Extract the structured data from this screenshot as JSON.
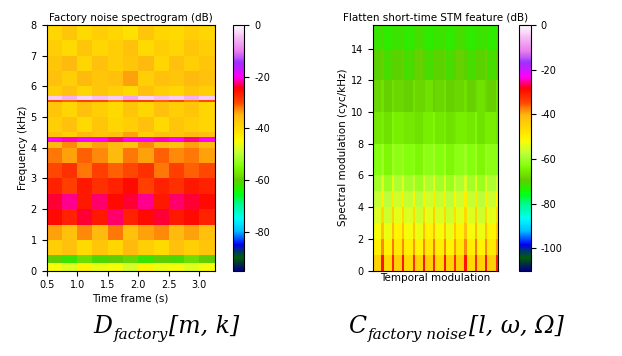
{
  "chart_data": [
    {
      "type": "heatmap",
      "title": "Factory noise spectrogram (dB)",
      "x_label": "Time frame (s)",
      "y_label": "Frequency (kHz)",
      "color": "gist_ncar",
      "tick_labels": true,
      "xlim": [
        0.5,
        3.25
      ],
      "xticks": [
        0.5,
        1.0,
        1.5,
        2.0,
        2.5,
        3.0
      ],
      "ylim": [
        0,
        8
      ],
      "yticks": [
        0,
        1,
        2,
        3,
        4,
        5,
        6,
        7,
        8
      ],
      "x_edges": [
        0.5,
        0.75,
        1.0,
        1.25,
        1.5,
        1.75,
        2.0,
        2.25,
        2.5,
        2.75,
        3.0,
        3.25
      ],
      "y_edges": [
        0,
        0.25,
        0.5,
        1,
        1.5,
        2,
        2.5,
        3,
        3.5,
        4,
        4.2,
        4.35,
        4.5,
        5,
        5.5,
        5.55,
        5.7,
        6,
        6.5,
        7,
        7.5,
        8
      ],
      "cells": [
        [
          -45,
          -47,
          -44,
          -46,
          -45,
          -48,
          -44,
          -46,
          -45,
          -47,
          -45
        ],
        [
          -60,
          -62,
          -58,
          -61,
          -60,
          -59,
          -62,
          -60,
          -61,
          -58,
          -60
        ],
        [
          -38,
          -36,
          -40,
          -37,
          -39,
          -35,
          -38,
          -40,
          -36,
          -38,
          -37
        ],
        [
          -34,
          -36,
          -33,
          -35,
          -32,
          -36,
          -34,
          -33,
          -35,
          -34,
          -36
        ],
        [
          -25,
          -27,
          -24,
          -26,
          -23,
          -27,
          -25,
          -24,
          -26,
          -25,
          -27
        ],
        [
          -24,
          -22,
          -26,
          -23,
          -25,
          -24,
          -22,
          -26,
          -23,
          -24,
          -25
        ],
        [
          -27,
          -29,
          -26,
          -28,
          -27,
          -25,
          -29,
          -27,
          -28,
          -26,
          -27
        ],
        [
          -30,
          -28,
          -32,
          -29,
          -31,
          -30,
          -28,
          -32,
          -29,
          -31,
          -30
        ],
        [
          -32,
          -34,
          -31,
          -33,
          -35,
          -32,
          -34,
          -31,
          -33,
          -32,
          -34
        ],
        [
          -35,
          -33,
          -36,
          -34,
          -35,
          -37,
          -33,
          -35,
          -36,
          -34,
          -35
        ],
        [
          -20,
          -21,
          -19,
          -20,
          -22,
          -20,
          -19,
          -21,
          -20,
          -22,
          -20
        ],
        [
          -36,
          -38,
          -35,
          -37,
          -36,
          -34,
          -38,
          -36,
          -37,
          -35,
          -36
        ],
        [
          -38,
          -36,
          -40,
          -37,
          -39,
          -38,
          -36,
          -40,
          -37,
          -38,
          -39
        ],
        [
          -37,
          -39,
          -36,
          -38,
          -40,
          -37,
          -39,
          -36,
          -38,
          -37,
          -39
        ],
        [
          -30,
          -31,
          -29,
          -30,
          -32,
          -30,
          -29,
          -31,
          -30,
          -32,
          -30
        ],
        [
          -4,
          -6,
          -3,
          -5,
          -4,
          -7,
          -3,
          -5,
          -4,
          -6,
          -4
        ],
        [
          -38,
          -36,
          -39,
          -37,
          -38,
          -40,
          -36,
          -38,
          -39,
          -37,
          -38
        ],
        [
          -36,
          -38,
          -35,
          -37,
          -36,
          -34,
          -38,
          -36,
          -37,
          -35,
          -36
        ],
        [
          -37,
          -35,
          -39,
          -36,
          -38,
          -37,
          -35,
          -39,
          -36,
          -38,
          -37
        ],
        [
          -38,
          -40,
          -37,
          -39,
          -38,
          -36,
          -40,
          -38,
          -39,
          -37,
          -38
        ],
        [
          -39,
          -37,
          -40,
          -38,
          -39,
          -41,
          -37,
          -39,
          -40,
          -38,
          -39
        ]
      ],
      "colorbar": {
        "range": [
          -95,
          0
        ],
        "ticks": [
          0,
          -20,
          -40,
          -60,
          -80
        ]
      },
      "caption": {
        "base": "D",
        "subscript": "factory",
        "args": "[m, k]"
      }
    },
    {
      "type": "heatmap",
      "title": "Flatten short-time STM feature (dB)",
      "x_label": "Temporal modulation",
      "y_label": "Spectral modulation (cyc/kHz)",
      "color": "gist_ncar",
      "tick_labels": "y",
      "xlim": [
        0,
        24
      ],
      "xticks": [],
      "ylim": [
        0,
        15.5
      ],
      "yticks": [
        0,
        2,
        4,
        6,
        8,
        10,
        12,
        14
      ],
      "x_edges": [
        0,
        1.6,
        2,
        3.6,
        4,
        5.6,
        6,
        7.6,
        8,
        9.6,
        10,
        11.6,
        12,
        13.6,
        14,
        15.6,
        16,
        17.6,
        18,
        19.6,
        20,
        21.6,
        22,
        23.6,
        24
      ],
      "y_edges": [
        0,
        1,
        2,
        3,
        4,
        5,
        6,
        8,
        10,
        12,
        14,
        15.5
      ],
      "cells": [
        [
          -45,
          -30,
          -46,
          -31,
          -44,
          -30,
          -46,
          -32,
          -45,
          -30,
          -44,
          -31,
          -46,
          -30,
          -45,
          -32,
          -44,
          -30,
          -46,
          -31,
          -45,
          -30,
          -44,
          -31
        ],
        [
          -50,
          -38,
          -51,
          -37,
          -49,
          -38,
          -50,
          -39,
          -51,
          -38,
          -49,
          -37,
          -50,
          -38,
          -51,
          -39,
          -49,
          -38,
          -50,
          -37,
          -51,
          -38,
          -49,
          -39
        ],
        [
          -52,
          -42,
          -53,
          -41,
          -51,
          -42,
          -52,
          -43,
          -53,
          -42,
          -51,
          -41,
          -52,
          -42,
          -53,
          -43,
          -51,
          -42,
          -52,
          -41,
          -53,
          -42,
          -51,
          -43
        ],
        [
          -55,
          -46,
          -56,
          -45,
          -54,
          -46,
          -55,
          -47,
          -56,
          -46,
          -54,
          -45,
          -55,
          -46,
          -56,
          -47,
          -54,
          -46,
          -55,
          -45,
          -56,
          -46,
          -54,
          -47
        ],
        [
          -57,
          -50,
          -58,
          -49,
          -56,
          -50,
          -57,
          -51,
          -58,
          -50,
          -56,
          -49,
          -57,
          -50,
          -58,
          -51,
          -56,
          -50,
          -57,
          -49,
          -58,
          -50,
          -56,
          -51
        ],
        [
          -60,
          -55,
          -61,
          -54,
          -59,
          -55,
          -60,
          -56,
          -61,
          -55,
          -59,
          -54,
          -60,
          -55,
          -61,
          -56,
          -59,
          -55,
          -60,
          -54,
          -61,
          -55,
          -59,
          -56
        ],
        [
          -63,
          -61,
          -64,
          -60,
          -62,
          -61,
          -63,
          -62,
          -64,
          -61,
          -62,
          -60,
          -63,
          -61,
          -64,
          -62,
          -62,
          -61,
          -63,
          -60,
          -64,
          -61,
          -62,
          -62
        ],
        [
          -66,
          -65,
          -67,
          -64,
          -65,
          -65,
          -66,
          -66,
          -67,
          -65,
          -65,
          -64,
          -66,
          -65,
          -67,
          -66,
          -65,
          -65,
          -66,
          -64,
          -67,
          -65,
          -65,
          -66
        ],
        [
          -68,
          -67,
          -69,
          -67,
          -68,
          -68,
          -69,
          -67,
          -68,
          -68,
          -67,
          -69,
          -68,
          -67,
          -69,
          -68,
          -68,
          -67,
          -69,
          -68,
          -67,
          -68,
          -69,
          -67
        ],
        [
          -70,
          -69,
          -71,
          -70,
          -70,
          -69,
          -71,
          -70,
          -69,
          -70,
          -71,
          -70,
          -70,
          -69,
          -71,
          -70,
          -69,
          -70,
          -71,
          -70,
          -70,
          -69,
          -71,
          -70
        ],
        [
          -72,
          -71,
          -73,
          -72,
          -72,
          -71,
          -73,
          -72,
          -71,
          -72,
          -73,
          -72,
          -72,
          -71,
          -73,
          -72,
          -71,
          -72,
          -73,
          -72,
          -72,
          -71,
          -73,
          -72
        ]
      ],
      "colorbar": {
        "range": [
          -110,
          0
        ],
        "ticks": [
          0,
          -20,
          -40,
          -60,
          -80,
          -100
        ]
      },
      "caption": {
        "base": "C",
        "subscript": "factory noise",
        "args": "[l, ω, Ω]"
      }
    }
  ]
}
